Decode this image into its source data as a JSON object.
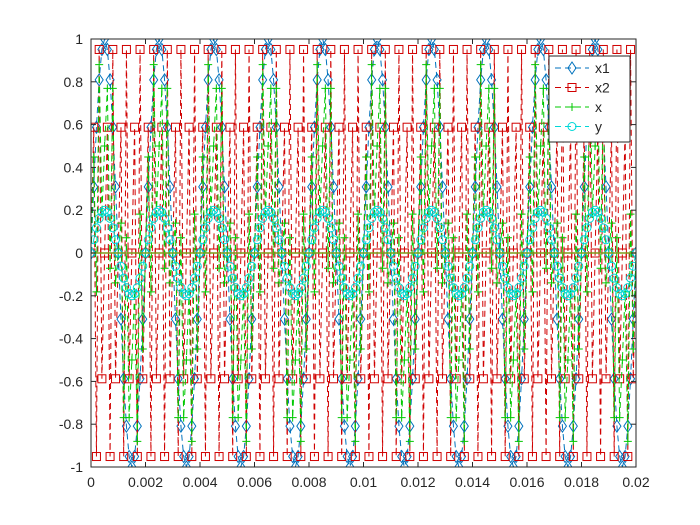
{
  "chart_data": {
    "type": "line",
    "title": "",
    "xlabel": "",
    "ylabel": "",
    "xlim": [
      0,
      0.02
    ],
    "ylim": [
      -1,
      1
    ],
    "x_ticks": [
      0,
      0.002,
      0.004,
      0.006,
      0.008,
      0.01,
      0.012,
      0.014,
      0.016,
      0.018,
      0.02
    ],
    "y_ticks": [
      -1,
      -0.8,
      -0.6,
      -0.4,
      -0.2,
      0,
      0.2,
      0.4,
      0.6,
      0.8,
      1
    ],
    "x_tick_labels": [
      "0",
      "0.002",
      "0.004",
      "0.006",
      "0.008",
      "0.01",
      "0.012",
      "0.014",
      "0.016",
      "0.018",
      "0.02"
    ],
    "y_tick_labels": [
      "-1",
      "-0.8",
      "-0.6",
      "-0.4",
      "-0.2",
      "0",
      "0.2",
      "0.4",
      "0.6",
      "0.8",
      "1"
    ],
    "grid": false,
    "box": true,
    "legend_position": "top-right",
    "sample_period": 0.0001,
    "sample_count": 201,
    "series": [
      {
        "name": "x1",
        "function": "sin",
        "frequency_hz": 500,
        "amplitude": 1,
        "color": "#0072BD",
        "line_style": "dashed",
        "marker": "diamond"
      },
      {
        "name": "x2",
        "function": "sin",
        "frequency_hz": 4000,
        "amplitude": 1,
        "color": "#D00000",
        "line_style": "dashed",
        "marker": "square"
      },
      {
        "name": "x",
        "function": "sum",
        "of": [
          "x1",
          "x2"
        ],
        "scale": 0.5,
        "color": "#00C800",
        "line_style": "dashed",
        "marker": "plus"
      },
      {
        "name": "y",
        "function": "sin",
        "frequency_hz": 500,
        "amplitude": 0.2,
        "color": "#00D8D8",
        "line_style": "dashed",
        "marker": "circle"
      }
    ]
  }
}
